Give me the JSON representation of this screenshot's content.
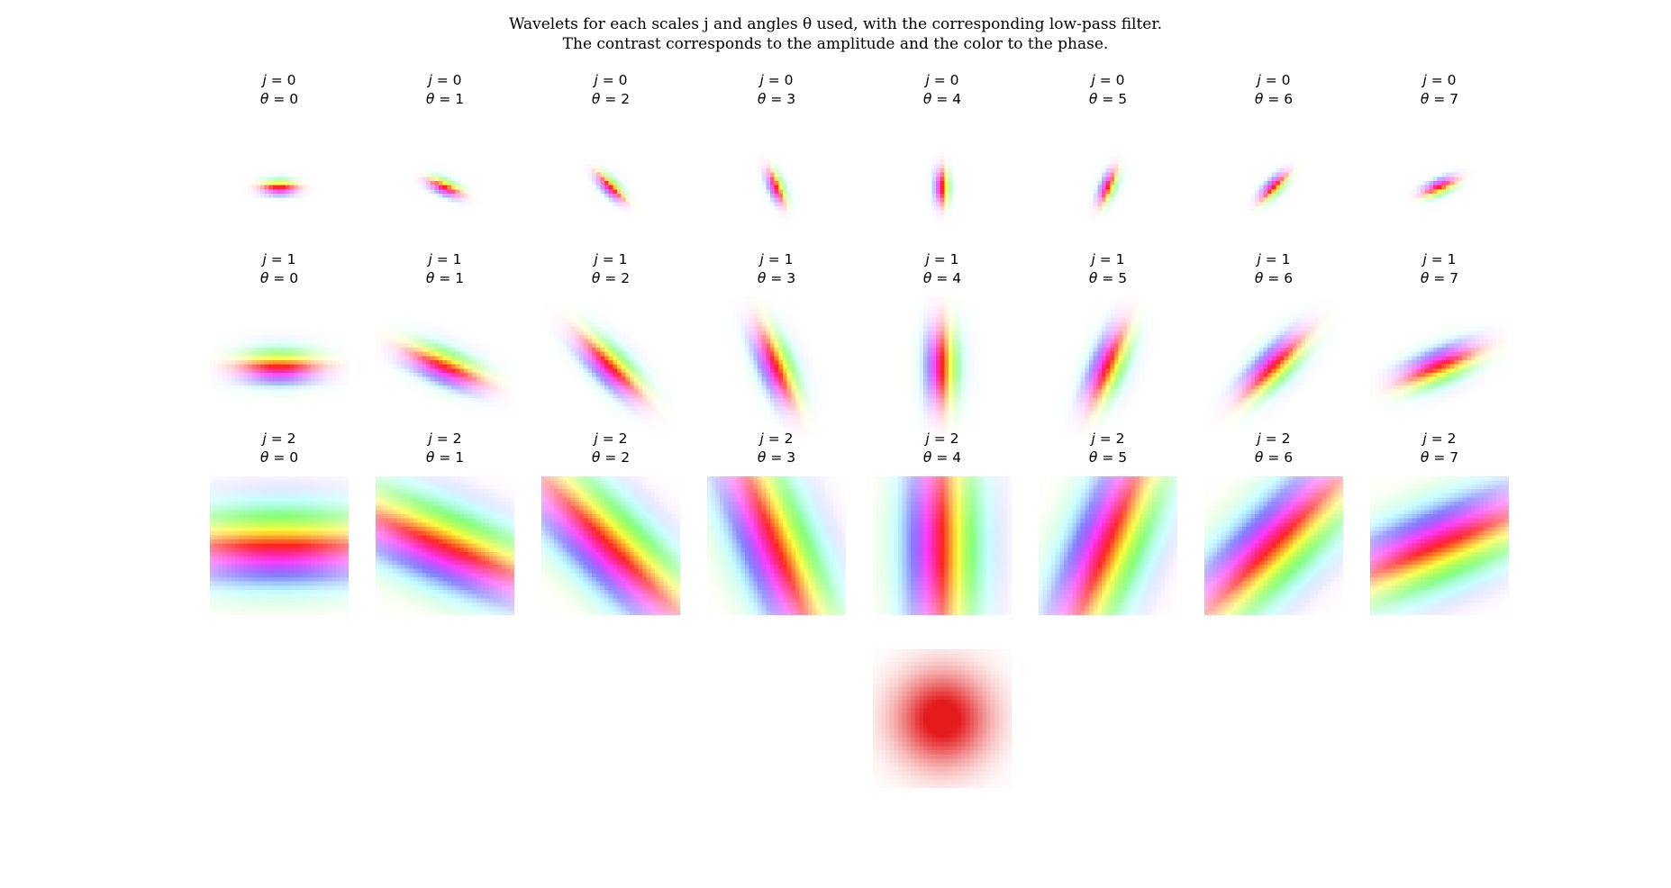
{
  "figure": {
    "title_line1": "Wavelets for each scales j and angles θ used, with the corresponding low-pass filter.",
    "title_line2": "The contrast corresponds to the amplitude and the color to the phase."
  },
  "grid": {
    "scales": [
      0,
      1,
      2
    ],
    "angles": [
      0,
      1,
      2,
      3,
      4,
      5,
      6,
      7
    ],
    "n_angles": 8,
    "j_label": "j",
    "theta_label": "θ"
  },
  "low_pass": {
    "color": "#e41a1c"
  },
  "rendering": {
    "encoding_note": "contrast = amplitude, hue = phase"
  }
}
